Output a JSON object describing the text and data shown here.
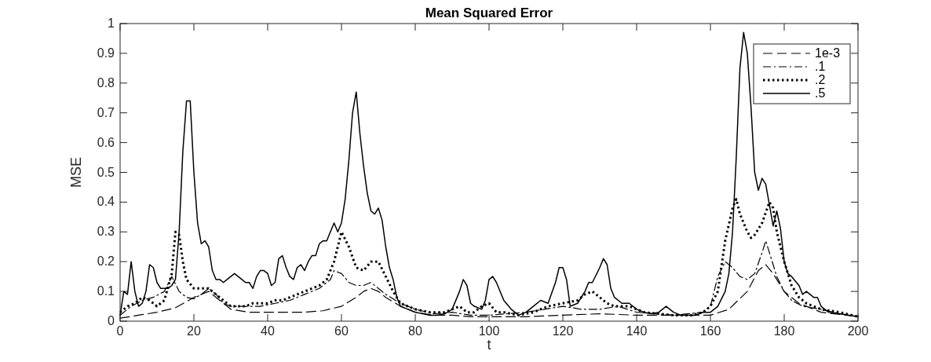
{
  "chart_data": {
    "type": "line",
    "title": "Mean Squared Error",
    "xlabel": "t",
    "ylabel": "MSE",
    "xlim": [
      0,
      200
    ],
    "xticks": [
      0,
      20,
      40,
      60,
      80,
      100,
      120,
      140,
      160,
      180,
      200
    ],
    "ylim": [
      0,
      1
    ],
    "yticks": [
      0,
      0.1,
      0.2,
      0.3,
      0.4,
      0.5,
      0.6,
      0.7,
      0.8,
      0.9,
      1
    ],
    "grid": false,
    "legend": "top right",
    "series": [
      {
        "name": "1e-3",
        "color": "#000000",
        "line_style": "dashed",
        "x": [
          0,
          5,
          10,
          15,
          20,
          24,
          26,
          28,
          30,
          35,
          40,
          45,
          50,
          55,
          60,
          64,
          66,
          68,
          70,
          72,
          76,
          80,
          85,
          90,
          95,
          100,
          110,
          120,
          130,
          140,
          150,
          160,
          165,
          170,
          173,
          175,
          177,
          180,
          184,
          190,
          200
        ],
        "values": [
          0.01,
          0.02,
          0.03,
          0.045,
          0.08,
          0.1,
          0.08,
          0.06,
          0.04,
          0.03,
          0.03,
          0.03,
          0.03,
          0.035,
          0.05,
          0.08,
          0.1,
          0.11,
          0.1,
          0.08,
          0.05,
          0.03,
          0.02,
          0.02,
          0.015,
          0.015,
          0.015,
          0.02,
          0.025,
          0.02,
          0.02,
          0.02,
          0.04,
          0.1,
          0.17,
          0.19,
          0.16,
          0.1,
          0.06,
          0.03,
          0.015
        ]
      },
      {
        "name": ".1",
        "color": "#000000",
        "line_style": "dashdot",
        "x": [
          0,
          3,
          6,
          9,
          12,
          14,
          16,
          18,
          20,
          22,
          24,
          26,
          28,
          30,
          34,
          38,
          42,
          46,
          50,
          54,
          57,
          58,
          60,
          62,
          64,
          66,
          68,
          70,
          72,
          76,
          80,
          85,
          90,
          95,
          100,
          105,
          110,
          115,
          120,
          125,
          130,
          135,
          140,
          150,
          158,
          160,
          162,
          164,
          166,
          168,
          170,
          172,
          174,
          175,
          176,
          178,
          180,
          182,
          185,
          190,
          195,
          200
        ],
        "values": [
          0.02,
          0.05,
          0.07,
          0.08,
          0.1,
          0.15,
          0.1,
          0.08,
          0.075,
          0.09,
          0.11,
          0.09,
          0.06,
          0.05,
          0.05,
          0.05,
          0.06,
          0.07,
          0.09,
          0.11,
          0.14,
          0.17,
          0.16,
          0.13,
          0.12,
          0.12,
          0.13,
          0.11,
          0.09,
          0.06,
          0.04,
          0.025,
          0.03,
          0.02,
          0.02,
          0.025,
          0.03,
          0.04,
          0.05,
          0.04,
          0.04,
          0.05,
          0.03,
          0.02,
          0.03,
          0.05,
          0.15,
          0.2,
          0.18,
          0.15,
          0.14,
          0.16,
          0.23,
          0.27,
          0.23,
          0.15,
          0.1,
          0.07,
          0.05,
          0.04,
          0.025,
          0.015
        ]
      },
      {
        "name": ".2",
        "color": "#000000",
        "line_style": "dotted",
        "x": [
          0,
          2,
          4,
          6,
          8,
          10,
          12,
          14,
          15,
          16,
          17,
          18,
          20,
          22,
          24,
          26,
          28,
          30,
          32,
          34,
          36,
          38,
          40,
          42,
          44,
          46,
          48,
          50,
          52,
          54,
          56,
          58,
          60,
          62,
          64,
          66,
          68,
          70,
          72,
          74,
          76,
          78,
          80,
          84,
          88,
          90,
          92,
          94,
          96,
          98,
          100,
          102,
          104,
          108,
          112,
          116,
          120,
          124,
          126,
          128,
          130,
          132,
          134,
          138,
          142,
          146,
          150,
          155,
          158,
          160,
          162,
          164,
          166,
          167,
          168,
          170,
          171,
          172,
          174,
          176,
          177,
          178,
          180,
          182,
          184,
          186,
          190,
          195,
          200
        ],
        "values": [
          0.03,
          0.05,
          0.06,
          0.08,
          0.07,
          0.05,
          0.07,
          0.16,
          0.3,
          0.29,
          0.2,
          0.14,
          0.11,
          0.11,
          0.11,
          0.09,
          0.07,
          0.05,
          0.05,
          0.05,
          0.06,
          0.06,
          0.06,
          0.07,
          0.07,
          0.08,
          0.09,
          0.1,
          0.11,
          0.12,
          0.14,
          0.2,
          0.3,
          0.25,
          0.18,
          0.17,
          0.2,
          0.2,
          0.15,
          0.1,
          0.06,
          0.05,
          0.04,
          0.03,
          0.03,
          0.04,
          0.05,
          0.03,
          0.03,
          0.05,
          0.06,
          0.03,
          0.03,
          0.02,
          0.03,
          0.05,
          0.06,
          0.07,
          0.09,
          0.1,
          0.08,
          0.06,
          0.05,
          0.05,
          0.03,
          0.025,
          0.02,
          0.02,
          0.03,
          0.05,
          0.1,
          0.27,
          0.38,
          0.41,
          0.36,
          0.3,
          0.28,
          0.29,
          0.33,
          0.4,
          0.38,
          0.3,
          0.2,
          0.12,
          0.08,
          0.06,
          0.04,
          0.03,
          0.015
        ]
      },
      {
        "name": ".5",
        "color": "#000000",
        "line_style": "solid",
        "x": [
          0,
          1,
          2,
          3,
          4,
          5,
          6,
          7,
          8,
          9,
          10,
          11,
          12,
          13,
          14,
          15,
          16,
          17,
          18,
          19,
          20,
          21,
          22,
          23,
          24,
          25,
          26,
          27,
          28,
          29,
          30,
          31,
          32,
          33,
          34,
          35,
          36,
          37,
          38,
          39,
          40,
          41,
          42,
          43,
          44,
          45,
          46,
          47,
          48,
          49,
          50,
          51,
          52,
          53,
          54,
          55,
          56,
          57,
          58,
          59,
          60,
          61,
          62,
          63,
          64,
          65,
          66,
          67,
          68,
          69,
          70,
          71,
          72,
          73,
          74,
          75,
          76,
          78,
          80,
          82,
          84,
          86,
          88,
          90,
          92,
          93,
          94,
          95,
          96,
          98,
          99,
          100,
          101,
          102,
          104,
          106,
          108,
          110,
          112,
          114,
          116,
          118,
          119,
          120,
          121,
          122,
          124,
          126,
          127,
          128,
          130,
          131,
          132,
          133,
          134,
          136,
          138,
          140,
          142,
          144,
          146,
          148,
          150,
          152,
          154,
          156,
          158,
          160,
          162,
          164,
          165,
          166,
          167,
          168,
          169,
          170,
          171,
          172,
          173,
          174,
          175,
          176,
          177,
          178,
          179,
          180,
          181,
          182,
          184,
          185,
          186,
          188,
          189,
          190,
          192,
          195,
          200
        ],
        "values": [
          0.02,
          0.1,
          0.09,
          0.2,
          0.1,
          0.05,
          0.06,
          0.1,
          0.19,
          0.18,
          0.13,
          0.11,
          0.11,
          0.11,
          0.12,
          0.14,
          0.3,
          0.57,
          0.74,
          0.74,
          0.5,
          0.33,
          0.26,
          0.27,
          0.25,
          0.17,
          0.14,
          0.14,
          0.13,
          0.14,
          0.15,
          0.16,
          0.15,
          0.14,
          0.13,
          0.13,
          0.11,
          0.15,
          0.17,
          0.17,
          0.16,
          0.12,
          0.13,
          0.21,
          0.22,
          0.18,
          0.15,
          0.14,
          0.18,
          0.19,
          0.17,
          0.2,
          0.22,
          0.22,
          0.26,
          0.27,
          0.27,
          0.3,
          0.33,
          0.3,
          0.33,
          0.41,
          0.54,
          0.7,
          0.77,
          0.63,
          0.52,
          0.43,
          0.37,
          0.36,
          0.38,
          0.34,
          0.25,
          0.18,
          0.14,
          0.08,
          0.05,
          0.04,
          0.03,
          0.025,
          0.02,
          0.02,
          0.025,
          0.04,
          0.1,
          0.14,
          0.12,
          0.06,
          0.05,
          0.04,
          0.07,
          0.14,
          0.15,
          0.13,
          0.07,
          0.04,
          0.02,
          0.03,
          0.05,
          0.07,
          0.06,
          0.13,
          0.18,
          0.18,
          0.14,
          0.05,
          0.06,
          0.1,
          0.13,
          0.13,
          0.18,
          0.21,
          0.19,
          0.11,
          0.08,
          0.06,
          0.06,
          0.04,
          0.03,
          0.025,
          0.03,
          0.05,
          0.03,
          0.02,
          0.02,
          0.02,
          0.03,
          0.03,
          0.05,
          0.1,
          0.16,
          0.3,
          0.55,
          0.85,
          0.97,
          0.9,
          0.72,
          0.5,
          0.44,
          0.48,
          0.46,
          0.39,
          0.32,
          0.37,
          0.31,
          0.2,
          0.16,
          0.15,
          0.12,
          0.09,
          0.1,
          0.08,
          0.08,
          0.05,
          0.03,
          0.025,
          0.015
        ]
      }
    ]
  }
}
